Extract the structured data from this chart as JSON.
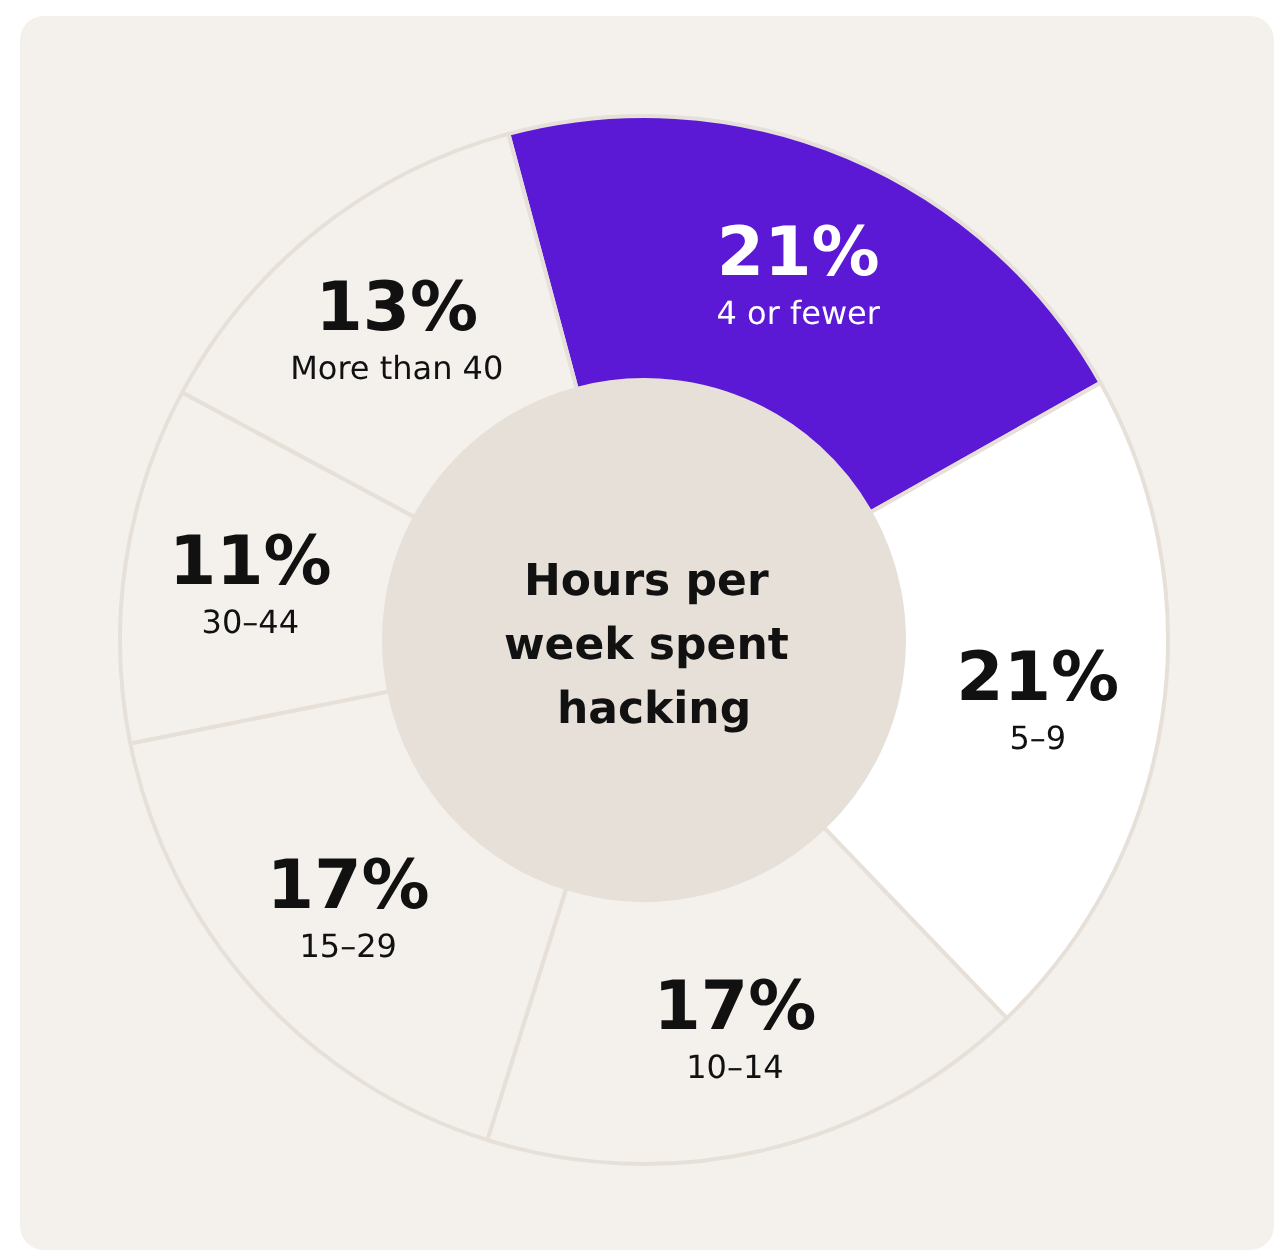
{
  "chart_data": {
    "type": "donut",
    "title": "Hours per week spent hacking",
    "categories": [
      "4 or fewer",
      "5–9",
      "10–14",
      "15–29",
      "30–44",
      "More than 40"
    ],
    "values": [
      21,
      21,
      17,
      17,
      11,
      13
    ],
    "value_labels": [
      "21%",
      "21%",
      "17%",
      "17%",
      "11%",
      "13%"
    ],
    "colors": [
      "#5b19d6",
      "#ffffff",
      "#f4f1ec",
      "#f4f1ec",
      "#f4f1ec",
      "#f4f1ec"
    ],
    "legend": false
  }
}
